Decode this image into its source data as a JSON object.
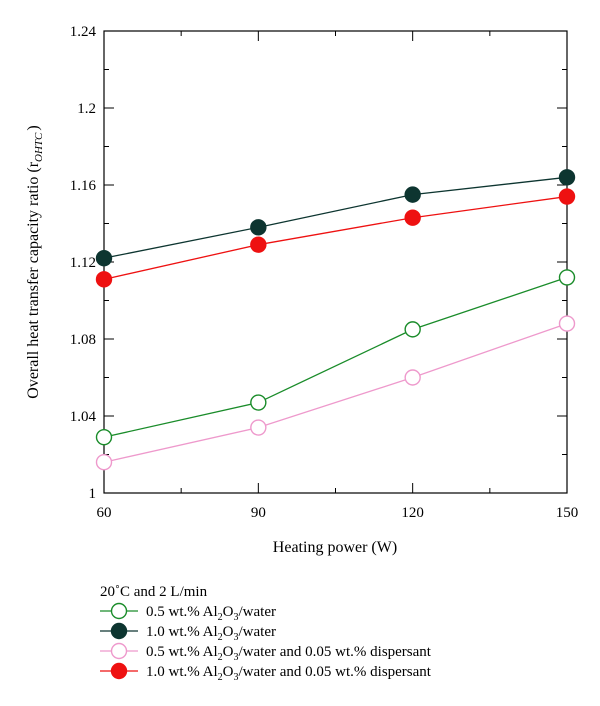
{
  "chart_data": {
    "type": "line",
    "xlabel": "Heating power (W)",
    "ylabel": "Overall heat transfer capacity ratio (r",
    "ylabel_sub": "OHTC",
    "ylabel_close": ")",
    "x": [
      60,
      90,
      120,
      150
    ],
    "x_ticks": [
      "60",
      "90",
      "120",
      "150"
    ],
    "xlim": [
      60,
      150
    ],
    "ylim": [
      1.0,
      1.24
    ],
    "y_ticks": [
      "1",
      "1.04",
      "1.08",
      "1.12",
      "1.16",
      "1.2",
      "1.24"
    ],
    "legend_title": "20˚C and 2 L/min",
    "legend_position": "below",
    "series": [
      {
        "name": "0.5 wt.% Al2O3/water",
        "n1": "0.5 wt.% Al",
        "n2": "O",
        "n3": "/water",
        "color": "#1a8c2a",
        "filled": false,
        "values": [
          1.029,
          1.047,
          1.085,
          1.112
        ]
      },
      {
        "name": "1.0 wt.% Al2O3/water",
        "n1": "1.0 wt.% Al",
        "n2": "O",
        "n3": "/water",
        "color": "#0d3530",
        "filled": true,
        "values": [
          1.122,
          1.138,
          1.155,
          1.164
        ]
      },
      {
        "name": "0.5 wt.% Al2O3/water and 0.05 wt.% dispersant",
        "n1": "0.5 wt.% Al",
        "n2": "O",
        "n3": "/water and 0.05 wt.% dispersant",
        "color": "#ee99cc",
        "filled": false,
        "values": [
          1.016,
          1.034,
          1.06,
          1.088
        ]
      },
      {
        "name": "1.0 wt.% Al2O3/water and 0.05 wt.% dispersant",
        "n1": "1.0 wt.% Al",
        "n2": "O",
        "n3": "/water and 0.05 wt.% dispersant",
        "color": "#ee1111",
        "filled": true,
        "values": [
          1.111,
          1.129,
          1.143,
          1.154
        ]
      }
    ]
  }
}
